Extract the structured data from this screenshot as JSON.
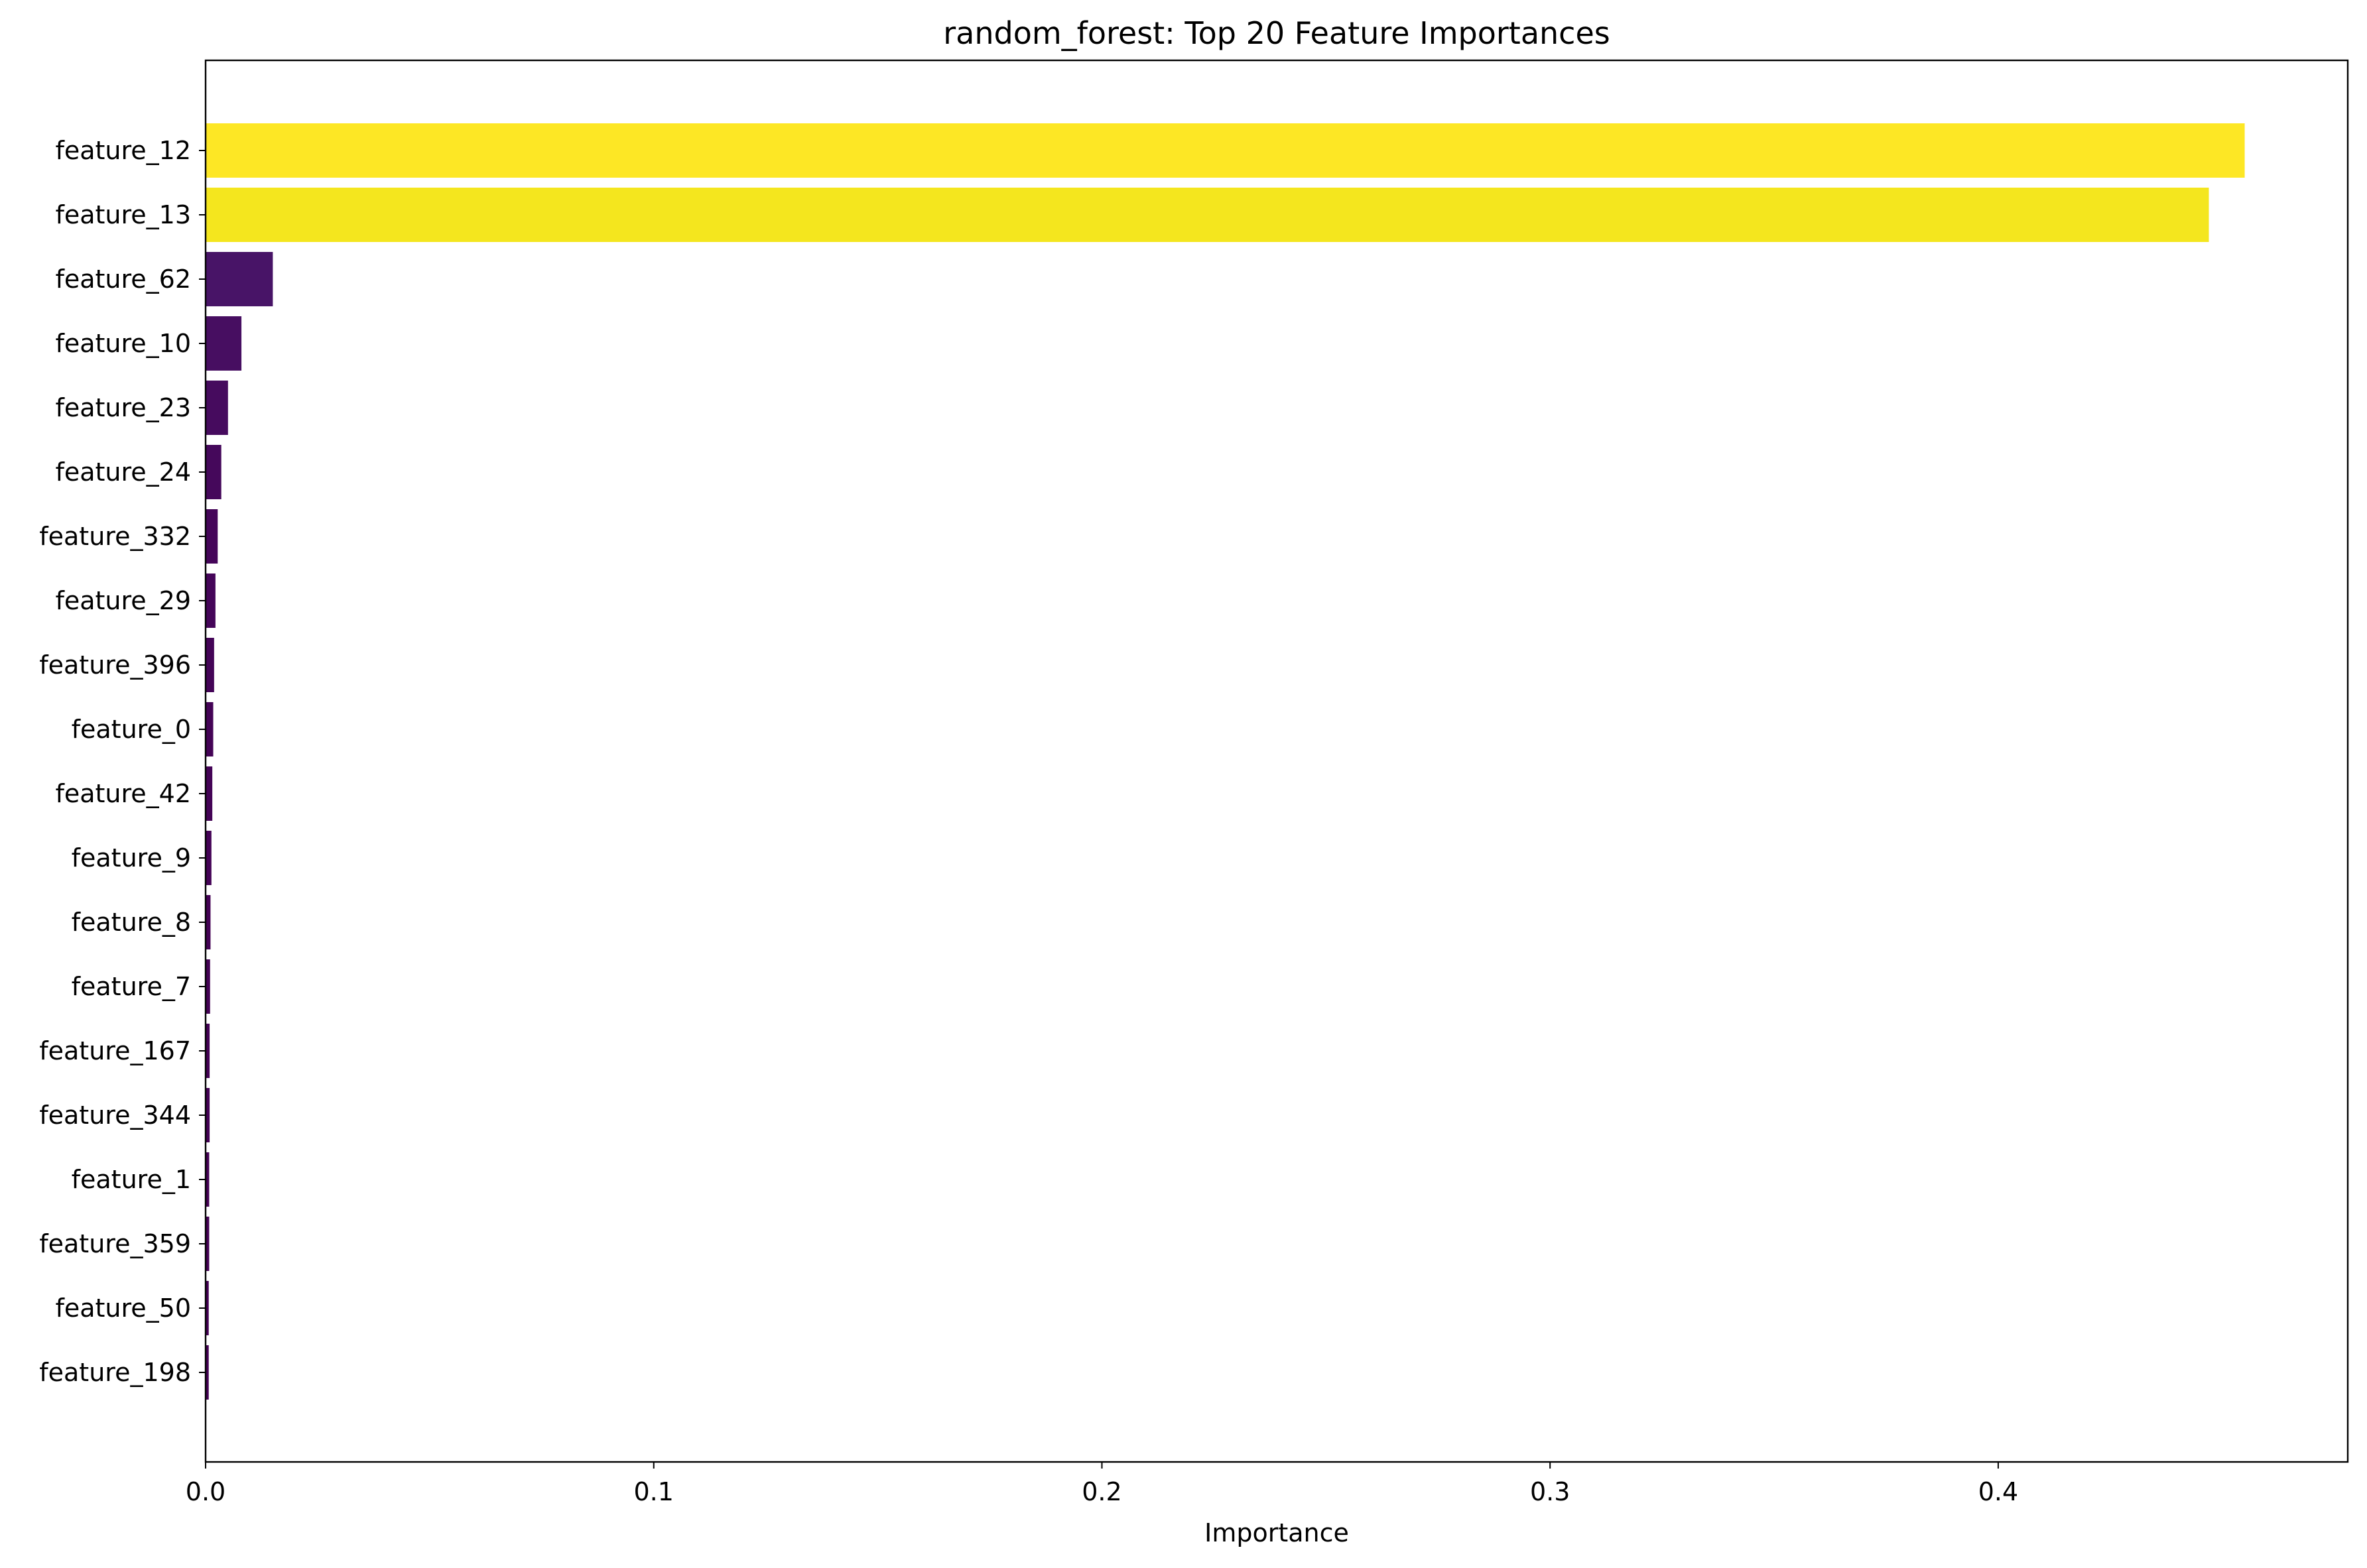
{
  "chart_data": {
    "type": "bar",
    "orientation": "horizontal",
    "title": "random_forest: Top 20 Feature Importances",
    "xlabel": "Importance",
    "ylabel": "",
    "xlim": [
      0,
      0.478
    ],
    "xticks": [
      0.0,
      0.1,
      0.2,
      0.3,
      0.4
    ],
    "xtick_labels": [
      "0.0",
      "0.1",
      "0.2",
      "0.3",
      "0.4"
    ],
    "grid": false,
    "legend": false,
    "colormap": "viridis",
    "categories": [
      "feature_12",
      "feature_13",
      "feature_62",
      "feature_10",
      "feature_23",
      "feature_24",
      "feature_332",
      "feature_29",
      "feature_396",
      "feature_0",
      "feature_42",
      "feature_9",
      "feature_8",
      "feature_7",
      "feature_167",
      "feature_344",
      "feature_1",
      "feature_359",
      "feature_50",
      "feature_198"
    ],
    "values": [
      0.455,
      0.447,
      0.015,
      0.008,
      0.005,
      0.0035,
      0.0027,
      0.0022,
      0.0019,
      0.0017,
      0.0015,
      0.0013,
      0.0011,
      0.001,
      0.0009,
      0.0009,
      0.0008,
      0.0008,
      0.0007,
      0.0007
    ],
    "colors": [
      "#fde725",
      "#f4e61e",
      "#481467",
      "#470e61",
      "#460b5e",
      "#45085b",
      "#450559",
      "#450559",
      "#440457",
      "#440356",
      "#440356",
      "#440256",
      "#440255",
      "#440255",
      "#440155",
      "#440155",
      "#440154",
      "#440154",
      "#440154",
      "#440154"
    ]
  }
}
